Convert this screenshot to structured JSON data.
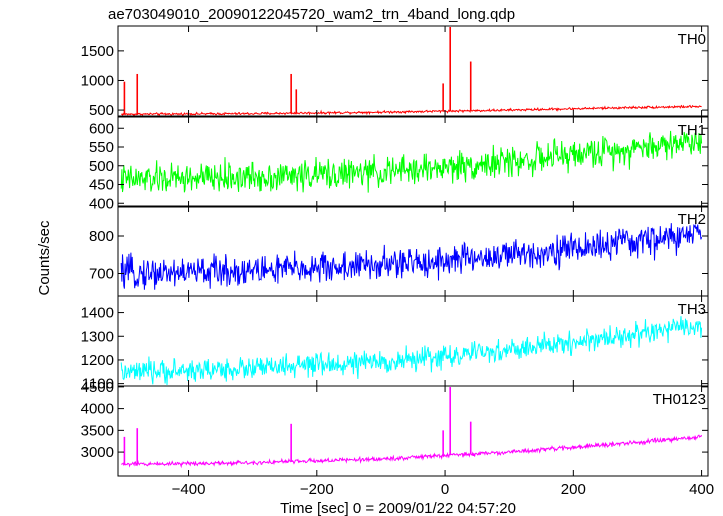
{
  "chart_data": {
    "type": "line",
    "title": "ae703049010_20090122045720_wam2_trn_4band_long.qdp",
    "xlabel": "Time [sec] 0 = 2009/01/22 04:57:20",
    "ylabel": "Counts/sec",
    "xlim": [
      -510,
      410
    ],
    "xticks": [
      -400,
      -200,
      0,
      200,
      400
    ],
    "xtick_labels": [
      "−400",
      "−200",
      "0",
      "200",
      "400"
    ],
    "grid": false,
    "panels": [
      {
        "name": "TH0",
        "color": "#ff0000",
        "ylim": [
          400,
          1920
        ],
        "yticks": [
          500,
          1000,
          1500
        ],
        "ytick_labels": [
          "500",
          "1000",
          "1500"
        ],
        "baseline": [
          [
            -505,
            430
          ],
          [
            -300,
            440
          ],
          [
            -100,
            465
          ],
          [
            100,
            500
          ],
          [
            300,
            545
          ],
          [
            400,
            560
          ]
        ],
        "noise": 12,
        "spikes": [
          [
            -500,
            980
          ],
          [
            -480,
            1110
          ],
          [
            -240,
            1110
          ],
          [
            -232,
            850
          ],
          [
            -3,
            950
          ],
          [
            8,
            1920
          ],
          [
            40,
            1320
          ]
        ]
      },
      {
        "name": "TH1",
        "color": "#00ff00",
        "ylim": [
          390,
          630
        ],
        "yticks": [
          400,
          450,
          500,
          550,
          600
        ],
        "ytick_labels": [
          "400",
          "450",
          "500",
          "550",
          "600"
        ],
        "baseline": [
          [
            -505,
            462
          ],
          [
            -300,
            470
          ],
          [
            -100,
            482
          ],
          [
            100,
            510
          ],
          [
            300,
            548
          ],
          [
            400,
            568
          ]
        ],
        "noise": 25,
        "spikes": []
      },
      {
        "name": "TH2",
        "color": "#0000ff",
        "ylim": [
          640,
          880
        ],
        "yticks": [
          700,
          800
        ],
        "ytick_labels": [
          "700",
          "800"
        ],
        "baseline": [
          [
            -505,
            700
          ],
          [
            -300,
            708
          ],
          [
            -100,
            722
          ],
          [
            100,
            748
          ],
          [
            300,
            785
          ],
          [
            400,
            805
          ]
        ],
        "noise": 26,
        "spikes": []
      },
      {
        "name": "TH3",
        "color": "#00ffff",
        "ylim": [
          1090,
          1470
        ],
        "yticks": [
          1100,
          1200,
          1300,
          1400
        ],
        "ytick_labels": [
          "1100",
          "1200",
          "1300",
          "1400"
        ],
        "baseline": [
          [
            -505,
            1145
          ],
          [
            -300,
            1165
          ],
          [
            -100,
            1190
          ],
          [
            100,
            1240
          ],
          [
            300,
            1310
          ],
          [
            400,
            1345
          ]
        ],
        "noise": 30,
        "spikes": []
      },
      {
        "name": "TH0123",
        "color": "#ff00ff",
        "ylim": [
          2450,
          4520
        ],
        "yticks": [
          3000,
          3500,
          4000,
          4500
        ],
        "ytick_labels": [
          "3000",
          "3500",
          "4000",
          "4500"
        ],
        "baseline": [
          [
            -505,
            2720
          ],
          [
            -300,
            2760
          ],
          [
            -100,
            2840
          ],
          [
            100,
            3000
          ],
          [
            300,
            3220
          ],
          [
            400,
            3350
          ]
        ],
        "noise": 30,
        "spikes": [
          [
            -500,
            3350
          ],
          [
            -480,
            3550
          ],
          [
            -240,
            3650
          ],
          [
            -3,
            3500
          ],
          [
            8,
            4520
          ],
          [
            40,
            3700
          ]
        ]
      }
    ]
  }
}
